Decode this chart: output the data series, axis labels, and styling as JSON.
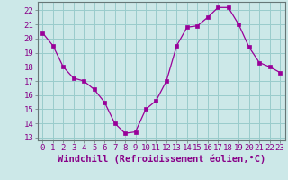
{
  "x": [
    0,
    1,
    2,
    3,
    4,
    5,
    6,
    7,
    8,
    9,
    10,
    11,
    12,
    13,
    14,
    15,
    16,
    17,
    18,
    19,
    20,
    21,
    22,
    23
  ],
  "y": [
    20.4,
    19.5,
    18.0,
    17.2,
    17.0,
    16.4,
    15.5,
    14.0,
    13.3,
    13.4,
    15.0,
    15.6,
    17.0,
    19.5,
    20.8,
    20.9,
    21.5,
    22.2,
    22.2,
    21.0,
    19.4,
    18.3,
    18.0,
    17.6
  ],
  "line_color": "#990099",
  "marker_color": "#990099",
  "bg_color": "#cce8e8",
  "grid_color": "#99cccc",
  "xlabel": "Windchill (Refroidissement éolien,°C)",
  "xlim": [
    -0.5,
    23.5
  ],
  "ylim": [
    12.8,
    22.6
  ],
  "yticks": [
    13,
    14,
    15,
    16,
    17,
    18,
    19,
    20,
    21,
    22
  ],
  "xticks": [
    0,
    1,
    2,
    3,
    4,
    5,
    6,
    7,
    8,
    9,
    10,
    11,
    12,
    13,
    14,
    15,
    16,
    17,
    18,
    19,
    20,
    21,
    22,
    23
  ],
  "tick_color": "#880088",
  "label_color": "#880088",
  "tick_fontsize": 6.5,
  "xlabel_fontsize": 7.5
}
